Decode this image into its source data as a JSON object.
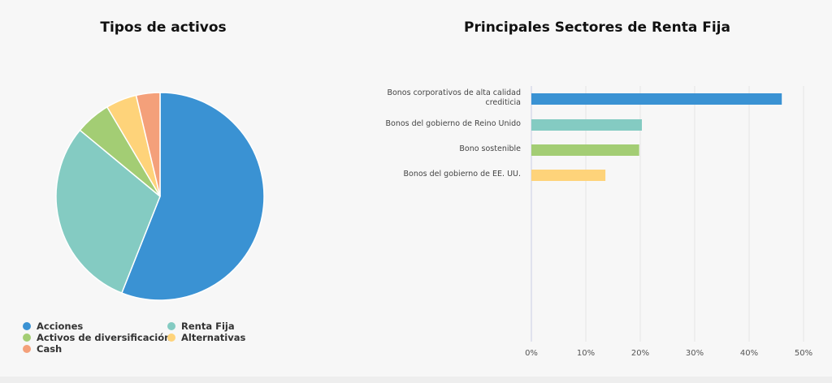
{
  "charts": {
    "pie_title": "Tipos de activos",
    "bar_title": "Principales Sectores de Renta Fija"
  },
  "chart_data": [
    {
      "type": "pie",
      "title": "Tipos de activos",
      "slices": [
        {
          "label": "Acciones",
          "value": 56,
          "color": "#3a92d3"
        },
        {
          "label": "Renta Fija",
          "value": 30,
          "color": "#84cbc2"
        },
        {
          "label": "Activos de diversificación",
          "value": 5.5,
          "color": "#a3cd74"
        },
        {
          "label": "Alternativas",
          "value": 4.8,
          "color": "#fed37a"
        },
        {
          "label": "Cash",
          "value": 3.7,
          "color": "#f4a07a"
        }
      ],
      "legend": "bottom"
    },
    {
      "type": "bar",
      "orientation": "horizontal",
      "title": "Principales Sectores de Renta Fija",
      "categories": [
        "Bonos corporativos de alta calidad crediticia",
        "Bonos del gobierno de Reino Unido",
        "Bono sostenible",
        "Bonos del gobierno de EE. UU."
      ],
      "values": [
        46,
        20.3,
        19.8,
        13.6
      ],
      "colors": [
        "#3a92d3",
        "#84cbc2",
        "#a3cd74",
        "#fed37a"
      ],
      "xlim": [
        0,
        50
      ],
      "xticks": [
        "0%",
        "10%",
        "20%",
        "30%",
        "40%",
        "50%"
      ],
      "grid": true
    }
  ]
}
